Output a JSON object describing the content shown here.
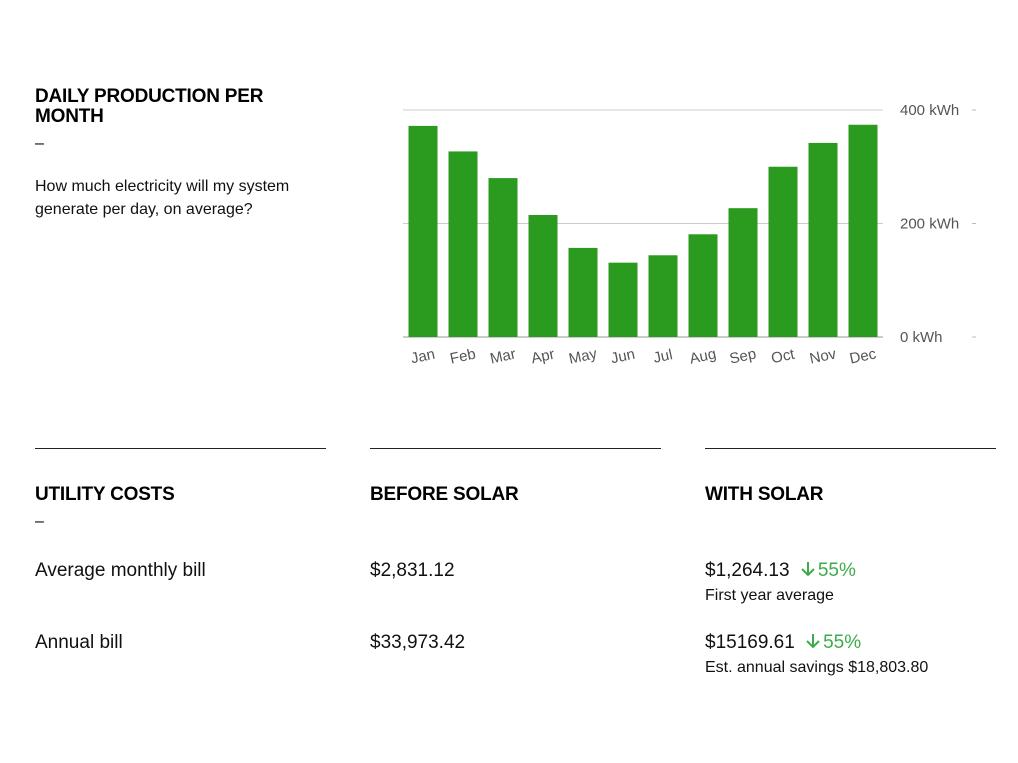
{
  "production": {
    "title": "DAILY PRODUCTION PER MONTH",
    "dash": "–",
    "question": "How much electricity will my system generate per day, on average?"
  },
  "chart_data": {
    "type": "bar",
    "categories": [
      "Jan",
      "Feb",
      "Mar",
      "Apr",
      "May",
      "Jun",
      "Jul",
      "Aug",
      "Sep",
      "Oct",
      "Nov",
      "Dec"
    ],
    "values": [
      372,
      327,
      280,
      215,
      157,
      131,
      144,
      181,
      227,
      300,
      342,
      374
    ],
    "y_ticks": [
      0,
      200,
      400
    ],
    "y_tick_labels": [
      "0 kWh",
      "200 kWh",
      "400 kWh"
    ],
    "ylim": [
      0,
      400
    ],
    "axis_position": "right",
    "grid": true,
    "bar_color": "#2a9b1e",
    "title": "",
    "xlabel": "",
    "ylabel": ""
  },
  "costs": {
    "title": "UTILITY COSTS",
    "dash": "–",
    "before_header": "BEFORE SOLAR",
    "with_header": "WITH SOLAR",
    "rows": [
      {
        "label": "Average monthly bill",
        "before": "$2,831.12",
        "with": "$1,264.13",
        "pct": "55%",
        "note": "First year average"
      },
      {
        "label": "Annual bill",
        "before": "$33,973.42",
        "with": "$15169.61",
        "pct": "55%",
        "note": "Est. annual savings $18,803.80"
      }
    ],
    "accent_color": "#3cac4a"
  }
}
